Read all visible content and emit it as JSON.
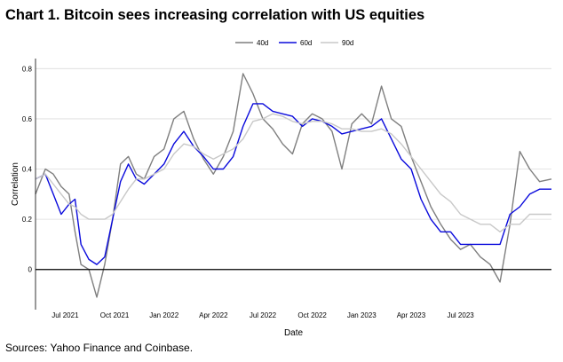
{
  "title": "Chart 1. Bitcoin sees increasing correlation with US equities",
  "source": "Sources: Yahoo Finance and Coinbase.",
  "chart_data": {
    "type": "line",
    "xlabel": "Date",
    "ylabel": "Correlation",
    "x_range": [
      2021.35,
      2023.96
    ],
    "ylim": [
      -0.16,
      0.84
    ],
    "y_ticks": [
      0,
      0.2,
      0.4,
      0.6,
      0.8
    ],
    "y_tick_labels": [
      "0",
      "0.2",
      "0.4",
      "0.6",
      "0.8"
    ],
    "x_ticks": [
      2021.5,
      2021.75,
      2022.0,
      2022.25,
      2022.5,
      2022.75,
      2023.0,
      2023.25,
      2023.5
    ],
    "x_tick_labels": [
      "Jul 2021",
      "Oct 2021",
      "Jan 2022",
      "Apr 2022",
      "Jul 2022",
      "Oct 2022",
      "Jan 2023",
      "Apr 2023",
      "Jul 2023"
    ],
    "grid": true,
    "zero_line": true,
    "legend_position": "top-center",
    "x": [
      2021.35,
      2021.4,
      2021.44,
      2021.48,
      2021.52,
      2021.55,
      2021.58,
      2021.62,
      2021.66,
      2021.7,
      2021.74,
      2021.78,
      2021.82,
      2021.86,
      2021.9,
      2021.95,
      2022.0,
      2022.05,
      2022.1,
      2022.15,
      2022.2,
      2022.25,
      2022.3,
      2022.35,
      2022.4,
      2022.45,
      2022.5,
      2022.55,
      2022.6,
      2022.65,
      2022.7,
      2022.75,
      2022.8,
      2022.85,
      2022.9,
      2022.95,
      2023.0,
      2023.05,
      2023.1,
      2023.15,
      2023.2,
      2023.25,
      2023.3,
      2023.35,
      2023.4,
      2023.45,
      2023.5,
      2023.55,
      2023.6,
      2023.65,
      2023.7,
      2023.75,
      2023.8,
      2023.85,
      2023.9,
      2023.96
    ],
    "series": [
      {
        "name": "40d",
        "color": "#7f7f7f",
        "values": [
          0.3,
          0.4,
          0.38,
          0.33,
          0.3,
          0.15,
          0.02,
          0.0,
          -0.11,
          0.02,
          0.2,
          0.42,
          0.45,
          0.38,
          0.36,
          0.45,
          0.48,
          0.6,
          0.63,
          0.52,
          0.44,
          0.38,
          0.45,
          0.55,
          0.78,
          0.7,
          0.6,
          0.56,
          0.5,
          0.46,
          0.58,
          0.62,
          0.6,
          0.55,
          0.4,
          0.58,
          0.62,
          0.58,
          0.73,
          0.6,
          0.57,
          0.45,
          0.35,
          0.25,
          0.18,
          0.12,
          0.08,
          0.1,
          0.05,
          0.02,
          -0.05,
          0.18,
          0.47,
          0.4,
          0.35,
          0.36
        ]
      },
      {
        "name": "60d",
        "color": "#0a0adc",
        "values": [
          0.36,
          0.38,
          0.3,
          0.22,
          0.26,
          0.28,
          0.1,
          0.04,
          0.02,
          0.05,
          0.2,
          0.35,
          0.42,
          0.36,
          0.34,
          0.38,
          0.42,
          0.5,
          0.55,
          0.49,
          0.45,
          0.4,
          0.4,
          0.45,
          0.57,
          0.66,
          0.66,
          0.63,
          0.62,
          0.61,
          0.57,
          0.6,
          0.59,
          0.57,
          0.54,
          0.55,
          0.56,
          0.57,
          0.6,
          0.52,
          0.44,
          0.4,
          0.28,
          0.2,
          0.15,
          0.15,
          0.1,
          0.1,
          0.1,
          0.1,
          0.1,
          0.22,
          0.25,
          0.3,
          0.32,
          0.32
        ]
      },
      {
        "name": "90d",
        "color": "#c8c8c8",
        "values": [
          0.36,
          0.38,
          0.34,
          0.3,
          0.26,
          0.25,
          0.22,
          0.2,
          0.2,
          0.2,
          0.22,
          0.27,
          0.32,
          0.36,
          0.36,
          0.38,
          0.4,
          0.46,
          0.5,
          0.49,
          0.46,
          0.44,
          0.46,
          0.48,
          0.52,
          0.59,
          0.6,
          0.62,
          0.61,
          0.59,
          0.58,
          0.59,
          0.59,
          0.58,
          0.56,
          0.56,
          0.55,
          0.55,
          0.56,
          0.54,
          0.5,
          0.45,
          0.4,
          0.35,
          0.3,
          0.27,
          0.22,
          0.2,
          0.18,
          0.18,
          0.15,
          0.18,
          0.18,
          0.22,
          0.22,
          0.22
        ]
      }
    ]
  }
}
